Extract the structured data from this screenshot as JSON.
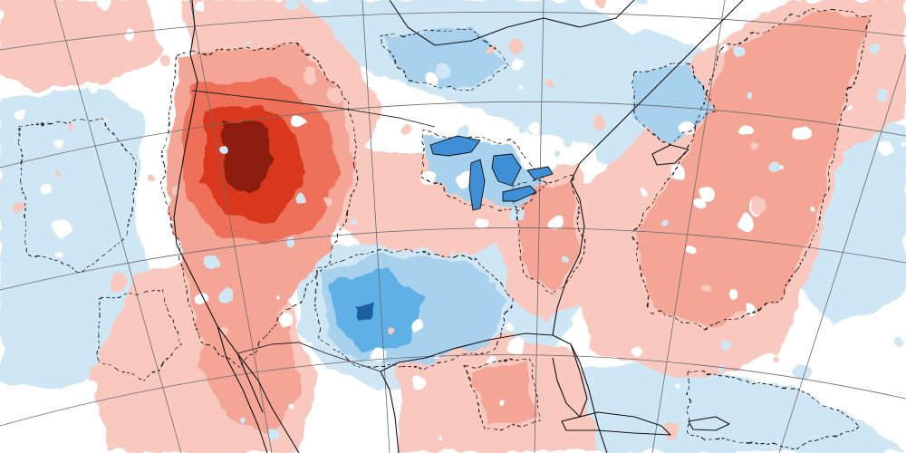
{
  "map": {
    "colors": {
      "background": "#ffffff",
      "warm_weak": "#f9c9bf",
      "warm_light": "#f4a595",
      "warm_medium": "#ee6f58",
      "warm_strong": "#d9381e",
      "warm_peak": "#8c1a10",
      "cool_weak": "#cfe6f5",
      "cool_light": "#a8d1ee",
      "cool_medium": "#5fb0e5",
      "cool_strong": "#2a86cf",
      "cool_peak": "#1a5f9e",
      "lake_fill": "#3f8fd6",
      "outline": "#111111",
      "graticule": "#6a6a6a"
    }
  }
}
